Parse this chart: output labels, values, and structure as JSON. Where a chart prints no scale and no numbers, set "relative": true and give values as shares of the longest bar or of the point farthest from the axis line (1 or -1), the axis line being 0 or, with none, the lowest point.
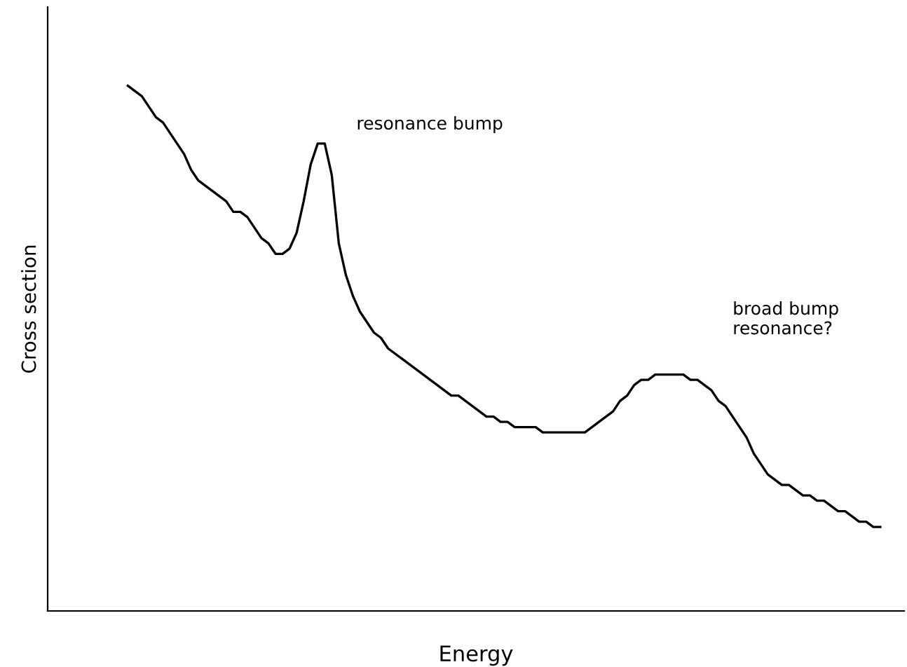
{
  "chart_data": {
    "type": "line",
    "relative": true,
    "xlabel": "Energy",
    "ylabel": "Cross section",
    "annotations": [
      "resonance bump",
      "broad bump\nresonance?"
    ],
    "color": "#000000",
    "grid": false,
    "legend": false,
    "marker": "none",
    "line_style": "solid",
    "categories": [
      null,
      null,
      null,
      null,
      null,
      null,
      null,
      null,
      null,
      null,
      null,
      null,
      null,
      null,
      null,
      null,
      null,
      null,
      null,
      null,
      null,
      null,
      null,
      null,
      null,
      null,
      null,
      null,
      null,
      null,
      null,
      null,
      null,
      null,
      null,
      null,
      null,
      null,
      null,
      null,
      null,
      null,
      null,
      null,
      null,
      null,
      null,
      null,
      null,
      null,
      null,
      null,
      null,
      null,
      null,
      null,
      null,
      null,
      null,
      null,
      null,
      null,
      null,
      null,
      null,
      null,
      null,
      null,
      null,
      null,
      null,
      null,
      null,
      null,
      null,
      null,
      null,
      null,
      null,
      null,
      null,
      null,
      null,
      null,
      null,
      null,
      null,
      null,
      null,
      null,
      null,
      null,
      null,
      null,
      null,
      null,
      null,
      null,
      null,
      null,
      null,
      null,
      null,
      null,
      null,
      null,
      null,
      null
    ],
    "values": [
      1.0,
      0.99,
      0.98,
      0.96,
      0.94,
      0.93,
      0.91,
      0.89,
      0.87,
      0.84,
      0.82,
      0.81,
      0.8,
      0.79,
      0.78,
      0.76,
      0.76,
      0.75,
      0.73,
      0.71,
      0.7,
      0.68,
      0.68,
      0.69,
      0.72,
      0.78,
      0.85,
      0.89,
      0.89,
      0.83,
      0.7,
      0.64,
      0.6,
      0.57,
      0.55,
      0.53,
      0.52,
      0.5,
      0.49,
      0.48,
      0.47,
      0.46,
      0.45,
      0.44,
      0.43,
      0.42,
      0.41,
      0.41,
      0.4,
      0.39,
      0.38,
      0.37,
      0.37,
      0.36,
      0.36,
      0.35,
      0.35,
      0.35,
      0.35,
      0.34,
      0.34,
      0.34,
      0.34,
      0.34,
      0.34,
      0.34,
      0.35,
      0.36,
      0.37,
      0.38,
      0.4,
      0.41,
      0.43,
      0.44,
      0.44,
      0.45,
      0.45,
      0.45,
      0.45,
      0.45,
      0.44,
      0.44,
      0.43,
      0.42,
      0.4,
      0.39,
      0.37,
      0.35,
      0.33,
      0.3,
      0.28,
      0.26,
      0.25,
      0.24,
      0.24,
      0.23,
      0.22,
      0.22,
      0.21,
      0.21,
      0.2,
      0.19,
      0.19,
      0.18,
      0.17,
      0.17,
      0.16,
      0.16
    ]
  }
}
